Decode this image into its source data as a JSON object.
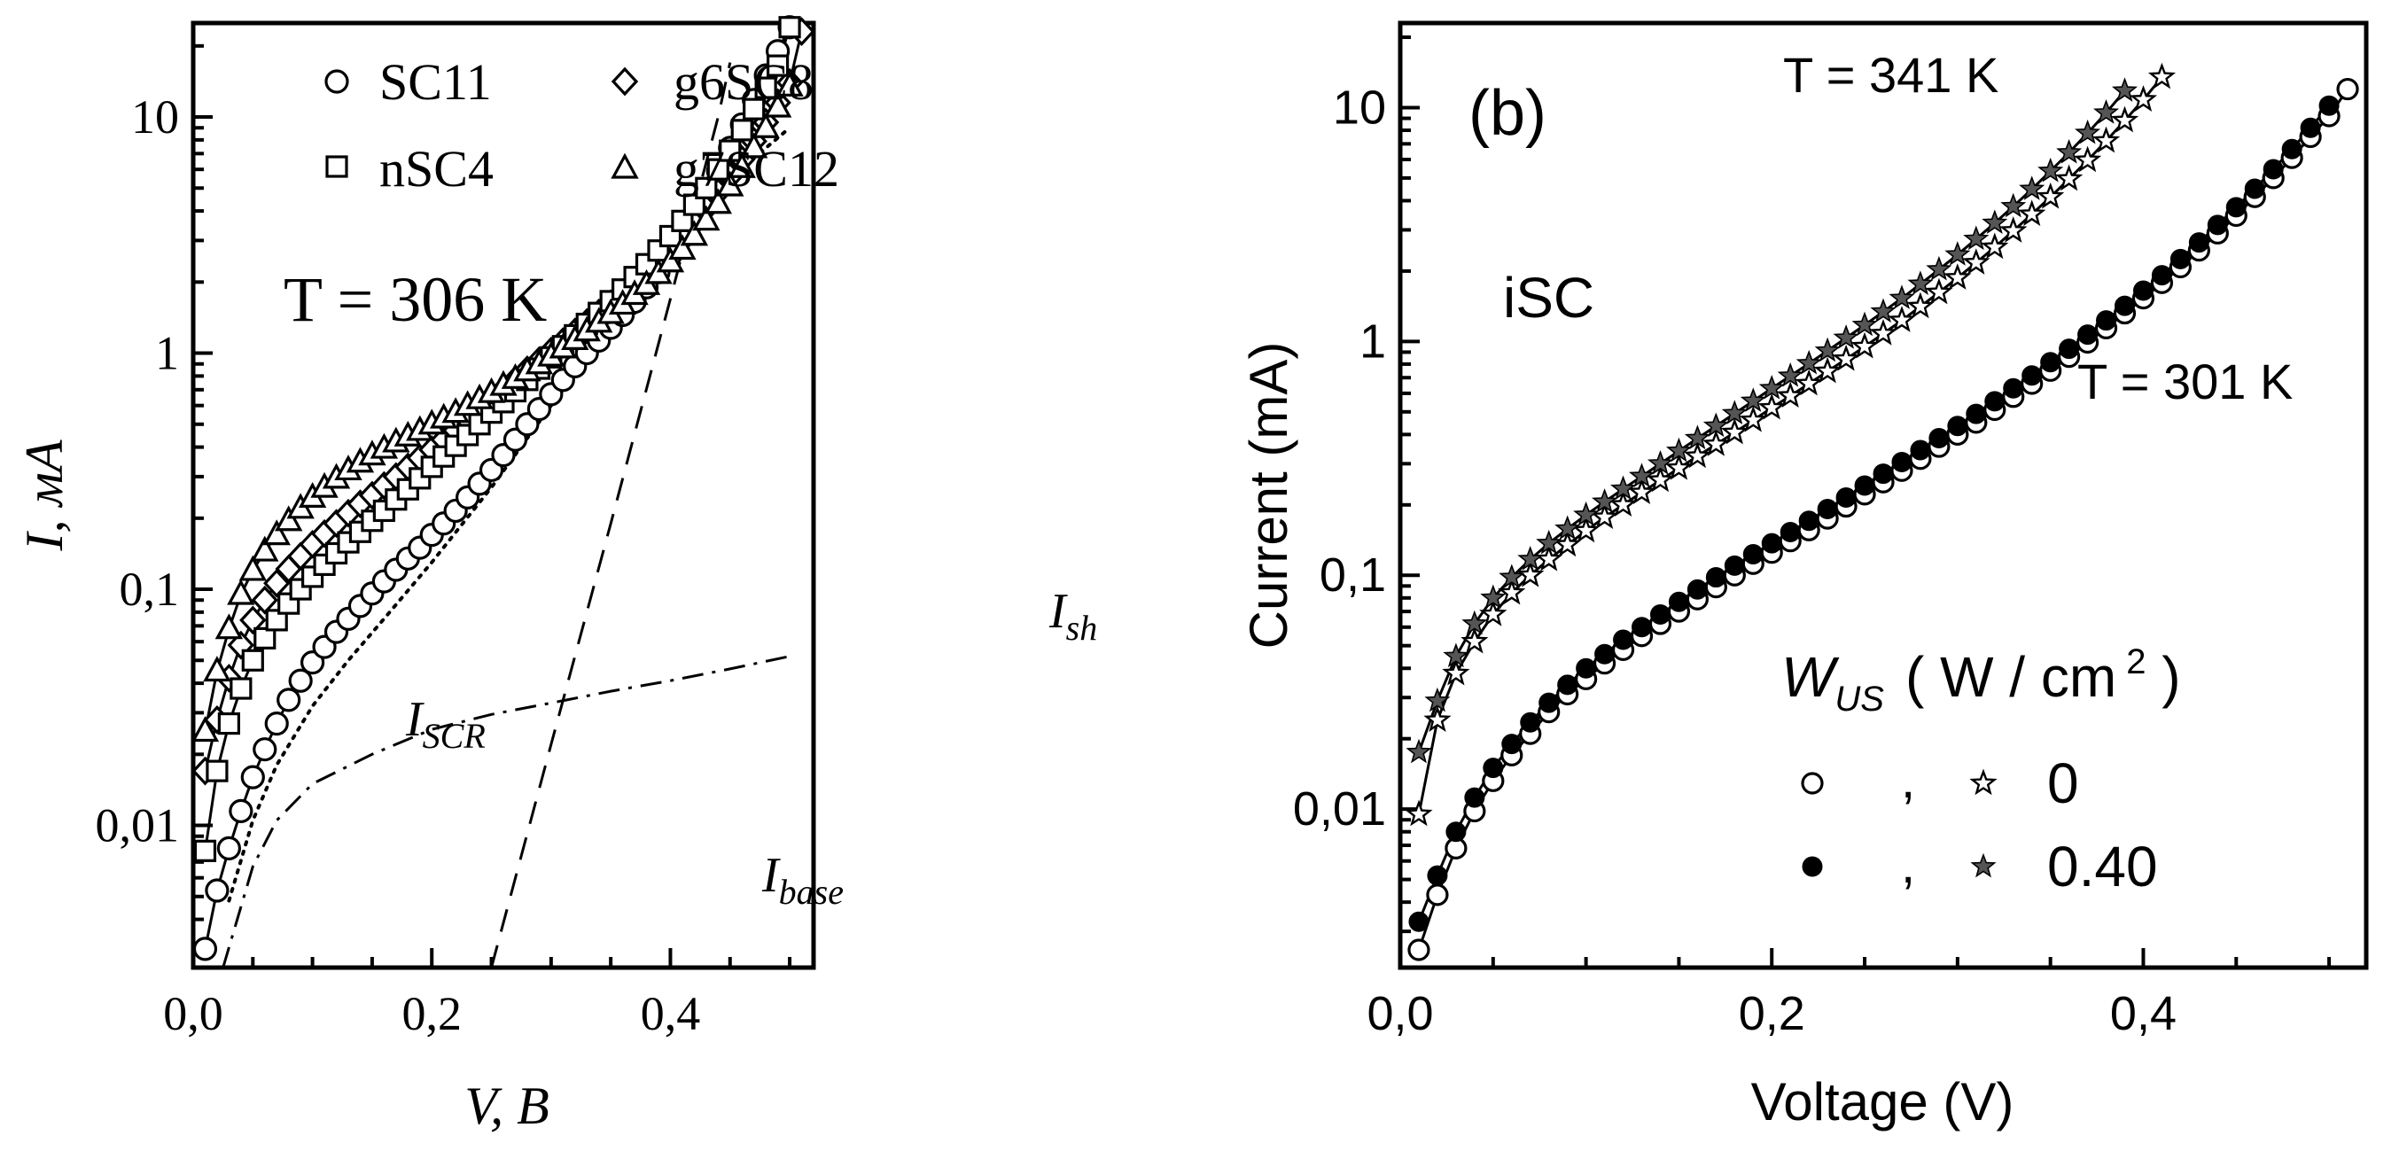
{
  "chart_data": [
    {
      "panel": "a",
      "type": "line",
      "yscale": "log",
      "xlim": [
        0,
        0.52
      ],
      "ylim": [
        0.0025,
        25
      ],
      "xticks": [
        "0,0",
        "0,2",
        "0,4"
      ],
      "yticks": [
        "0,01",
        "0,1",
        "1",
        "10"
      ],
      "xlabel": "V,  В",
      "ylabel": "I, мА",
      "annotation": "T = 306 K",
      "legend": [
        "SC11",
        "g6SC8",
        "nSC4",
        "g7SC12"
      ],
      "legend_position": "top-left",
      "series": [
        {
          "name": "SC11",
          "marker": "circle",
          "x": [
            0.01,
            0.02,
            0.03,
            0.04,
            0.05,
            0.06,
            0.07,
            0.08,
            0.09,
            0.1,
            0.11,
            0.12,
            0.13,
            0.14,
            0.15,
            0.16,
            0.17,
            0.18,
            0.19,
            0.2,
            0.21,
            0.22,
            0.23,
            0.24,
            0.25,
            0.26,
            0.27,
            0.28,
            0.29,
            0.3,
            0.31,
            0.32,
            0.33,
            0.34,
            0.35,
            0.36,
            0.37,
            0.38,
            0.39,
            0.4,
            0.41,
            0.42,
            0.43,
            0.44,
            0.45,
            0.46,
            0.47,
            0.48,
            0.49,
            0.5
          ],
          "y": [
            0.003,
            0.0053,
            0.008,
            0.0115,
            0.016,
            0.021,
            0.027,
            0.034,
            0.041,
            0.049,
            0.057,
            0.066,
            0.075,
            0.085,
            0.096,
            0.108,
            0.121,
            0.135,
            0.15,
            0.17,
            0.19,
            0.215,
            0.245,
            0.28,
            0.32,
            0.37,
            0.43,
            0.5,
            0.58,
            0.67,
            0.77,
            0.88,
            1.0,
            1.13,
            1.28,
            1.45,
            1.65,
            1.9,
            2.2,
            2.6,
            3.1,
            3.8,
            4.7,
            5.9,
            7.4,
            9.3,
            11.8,
            15,
            19,
            24
          ]
        },
        {
          "name": "g6SC8",
          "marker": "diamond",
          "x": [
            0.01,
            0.02,
            0.03,
            0.04,
            0.05,
            0.06,
            0.07,
            0.08,
            0.09,
            0.1,
            0.11,
            0.12,
            0.13,
            0.14,
            0.15,
            0.16,
            0.17,
            0.18,
            0.19,
            0.2,
            0.21,
            0.22,
            0.23,
            0.24,
            0.25,
            0.26,
            0.27,
            0.28,
            0.29,
            0.3,
            0.31,
            0.32,
            0.33,
            0.34,
            0.35,
            0.36,
            0.37,
            0.38,
            0.39,
            0.4,
            0.41,
            0.42,
            0.43,
            0.44,
            0.45,
            0.46,
            0.47,
            0.48,
            0.49,
            0.5,
            0.51
          ],
          "y": [
            0.017,
            0.028,
            0.042,
            0.058,
            0.074,
            0.09,
            0.106,
            0.122,
            0.138,
            0.155,
            0.172,
            0.19,
            0.21,
            0.23,
            0.25,
            0.275,
            0.3,
            0.33,
            0.36,
            0.39,
            0.43,
            0.47,
            0.52,
            0.57,
            0.63,
            0.7,
            0.77,
            0.85,
            0.93,
            1.02,
            1.12,
            1.23,
            1.35,
            1.48,
            1.62,
            1.78,
            1.96,
            2.17,
            2.42,
            2.72,
            3.1,
            3.55,
            4.1,
            4.8,
            5.6,
            6.6,
            7.9,
            9.5,
            11.5,
            14,
            23
          ]
        },
        {
          "name": "nSC4",
          "marker": "square",
          "x": [
            0.01,
            0.02,
            0.03,
            0.04,
            0.05,
            0.06,
            0.07,
            0.08,
            0.09,
            0.1,
            0.11,
            0.12,
            0.13,
            0.14,
            0.15,
            0.16,
            0.17,
            0.18,
            0.19,
            0.2,
            0.21,
            0.22,
            0.23,
            0.24,
            0.25,
            0.26,
            0.27,
            0.28,
            0.29,
            0.3,
            0.31,
            0.32,
            0.33,
            0.34,
            0.35,
            0.36,
            0.37,
            0.38,
            0.39,
            0.4,
            0.41,
            0.42,
            0.43,
            0.44,
            0.45,
            0.46,
            0.47,
            0.48,
            0.49,
            0.5
          ],
          "y": [
            0.0078,
            0.017,
            0.027,
            0.038,
            0.05,
            0.062,
            0.074,
            0.087,
            0.1,
            0.113,
            0.127,
            0.142,
            0.158,
            0.175,
            0.195,
            0.215,
            0.24,
            0.265,
            0.295,
            0.33,
            0.365,
            0.405,
            0.45,
            0.5,
            0.56,
            0.62,
            0.69,
            0.77,
            0.86,
            0.96,
            1.07,
            1.19,
            1.33,
            1.48,
            1.66,
            1.86,
            2.1,
            2.38,
            2.72,
            3.13,
            3.63,
            4.25,
            5.0,
            6.0,
            7.2,
            8.8,
            10.8,
            13.3,
            16.5,
            24
          ]
        },
        {
          "name": "g7SC12",
          "marker": "triangle",
          "x": [
            0.01,
            0.02,
            0.03,
            0.04,
            0.05,
            0.06,
            0.07,
            0.08,
            0.09,
            0.1,
            0.11,
            0.12,
            0.13,
            0.14,
            0.15,
            0.16,
            0.17,
            0.18,
            0.19,
            0.2,
            0.21,
            0.22,
            0.23,
            0.24,
            0.25,
            0.26,
            0.27,
            0.28,
            0.29,
            0.3,
            0.31,
            0.32,
            0.33,
            0.34,
            0.35,
            0.36,
            0.37,
            0.38,
            0.39,
            0.4,
            0.41,
            0.42,
            0.43,
            0.44,
            0.45,
            0.46,
            0.47,
            0.48,
            0.49,
            0.5
          ],
          "y": [
            0.025,
            0.045,
            0.068,
            0.095,
            0.12,
            0.145,
            0.17,
            0.195,
            0.22,
            0.245,
            0.27,
            0.295,
            0.32,
            0.345,
            0.37,
            0.395,
            0.42,
            0.445,
            0.47,
            0.5,
            0.53,
            0.56,
            0.6,
            0.64,
            0.68,
            0.73,
            0.78,
            0.84,
            0.9,
            0.97,
            1.05,
            1.14,
            1.24,
            1.35,
            1.47,
            1.61,
            1.77,
            1.95,
            2.17,
            2.43,
            2.75,
            3.15,
            3.65,
            4.3,
            5.1,
            6.1,
            7.4,
            9.0,
            11.0,
            13.5
          ]
        },
        {
          "name": "I_SCR",
          "style": "dotted",
          "x": [
            0.03,
            0.05,
            0.07,
            0.1,
            0.13,
            0.16,
            0.2,
            0.25,
            0.3,
            0.35,
            0.4,
            0.45,
            0.5
          ],
          "y": [
            0.0048,
            0.0105,
            0.018,
            0.032,
            0.05,
            0.075,
            0.13,
            0.27,
            0.6,
            1.3,
            2.8,
            5.5,
            9.0
          ]
        },
        {
          "name": "I_sh",
          "style": "dash-dot",
          "x": [
            0.025,
            0.05,
            0.07,
            0.1,
            0.15,
            0.2,
            0.25,
            0.3,
            0.35,
            0.4,
            0.45,
            0.5
          ],
          "y": [
            0.0025,
            0.0067,
            0.0105,
            0.015,
            0.02,
            0.0255,
            0.0295,
            0.033,
            0.037,
            0.041,
            0.046,
            0.052
          ]
        },
        {
          "name": "I_base",
          "style": "dashed",
          "x": [
            0.25,
            0.3,
            0.35,
            0.4,
            0.44,
            0.45
          ],
          "y": [
            0.0025,
            0.022,
            0.19,
            1.7,
            10,
            17
          ]
        }
      ],
      "curve_labels": {
        "I_SCR": "I",
        "I_SCR_sub": "SCR",
        "I_base": "I",
        "I_base_sub": "base",
        "I_sh": "I",
        "I_sh_sub": "sh"
      }
    },
    {
      "panel": "b",
      "type": "line",
      "yscale": "log",
      "xlim": [
        0,
        0.52
      ],
      "ylim": [
        0.0021,
        23
      ],
      "xticks": [
        "0,0",
        "0,2",
        "0,4"
      ],
      "yticks": [
        "0,01",
        "0,1",
        "1",
        "10"
      ],
      "xlabel": "Voltage (V)",
      "ylabel": "Current (mA)",
      "panel_label": "(b)",
      "sample_label": "iSC",
      "annotations": [
        "T = 341 K",
        "T = 301 K"
      ],
      "legend_title": "W_US  ( W / cm 2 )",
      "legend_rows": [
        "0",
        "0.40"
      ],
      "legend_sep": ",",
      "series": [
        {
          "name": "301 K, 0",
          "marker": "open-circle",
          "x": [
            0.01,
            0.02,
            0.03,
            0.04,
            0.05,
            0.06,
            0.07,
            0.08,
            0.09,
            0.1,
            0.11,
            0.12,
            0.13,
            0.14,
            0.15,
            0.16,
            0.17,
            0.18,
            0.19,
            0.2,
            0.21,
            0.22,
            0.23,
            0.24,
            0.25,
            0.26,
            0.27,
            0.28,
            0.29,
            0.3,
            0.31,
            0.32,
            0.33,
            0.34,
            0.35,
            0.36,
            0.37,
            0.38,
            0.39,
            0.4,
            0.41,
            0.42,
            0.43,
            0.44,
            0.45,
            0.46,
            0.47,
            0.48,
            0.49,
            0.5,
            0.51
          ],
          "y": [
            0.0025,
            0.0043,
            0.0068,
            0.0098,
            0.0132,
            0.017,
            0.021,
            0.026,
            0.031,
            0.036,
            0.042,
            0.048,
            0.055,
            0.062,
            0.07,
            0.079,
            0.089,
            0.1,
            0.112,
            0.125,
            0.14,
            0.156,
            0.175,
            0.197,
            0.222,
            0.25,
            0.28,
            0.315,
            0.355,
            0.4,
            0.45,
            0.51,
            0.58,
            0.66,
            0.75,
            0.86,
            0.99,
            1.14,
            1.32,
            1.53,
            1.78,
            2.08,
            2.45,
            2.9,
            3.45,
            4.15,
            5.0,
            6.1,
            7.5,
            9.2,
            12.0
          ]
        },
        {
          "name": "301 K, 0.40",
          "marker": "filled-circle",
          "x": [
            0.01,
            0.02,
            0.03,
            0.04,
            0.05,
            0.06,
            0.07,
            0.08,
            0.09,
            0.1,
            0.11,
            0.12,
            0.13,
            0.14,
            0.15,
            0.16,
            0.17,
            0.18,
            0.19,
            0.2,
            0.21,
            0.22,
            0.23,
            0.24,
            0.25,
            0.26,
            0.27,
            0.28,
            0.29,
            0.3,
            0.31,
            0.32,
            0.33,
            0.34,
            0.35,
            0.36,
            0.37,
            0.38,
            0.39,
            0.4,
            0.41,
            0.42,
            0.43,
            0.44,
            0.45,
            0.46,
            0.47,
            0.48,
            0.49,
            0.5
          ],
          "y": [
            0.0033,
            0.0052,
            0.008,
            0.0112,
            0.015,
            0.019,
            0.0235,
            0.0285,
            0.034,
            0.04,
            0.046,
            0.053,
            0.06,
            0.068,
            0.077,
            0.087,
            0.098,
            0.11,
            0.123,
            0.137,
            0.153,
            0.171,
            0.192,
            0.215,
            0.242,
            0.272,
            0.305,
            0.343,
            0.386,
            0.435,
            0.49,
            0.555,
            0.63,
            0.715,
            0.815,
            0.93,
            1.07,
            1.23,
            1.42,
            1.65,
            1.92,
            2.25,
            2.65,
            3.15,
            3.75,
            4.5,
            5.45,
            6.65,
            8.2,
            10.2
          ]
        },
        {
          "name": "341 K, 0",
          "marker": "open-star",
          "x": [
            0.01,
            0.02,
            0.03,
            0.04,
            0.05,
            0.06,
            0.07,
            0.08,
            0.09,
            0.1,
            0.11,
            0.12,
            0.13,
            0.14,
            0.15,
            0.16,
            0.17,
            0.18,
            0.19,
            0.2,
            0.21,
            0.22,
            0.23,
            0.24,
            0.25,
            0.26,
            0.27,
            0.28,
            0.29,
            0.3,
            0.31,
            0.32,
            0.33,
            0.34,
            0.35,
            0.36,
            0.37,
            0.38,
            0.39,
            0.4,
            0.41
          ],
          "y": [
            0.0095,
            0.024,
            0.038,
            0.052,
            0.068,
            0.084,
            0.1,
            0.117,
            0.135,
            0.155,
            0.177,
            0.2,
            0.226,
            0.255,
            0.287,
            0.323,
            0.363,
            0.408,
            0.46,
            0.52,
            0.585,
            0.66,
            0.745,
            0.84,
            0.95,
            1.08,
            1.23,
            1.41,
            1.62,
            1.87,
            2.17,
            2.53,
            2.97,
            3.5,
            4.15,
            4.95,
            5.95,
            7.2,
            8.8,
            10.8,
            13.5
          ]
        },
        {
          "name": "341 K, 0.40",
          "marker": "filled-star",
          "x": [
            0.01,
            0.02,
            0.03,
            0.04,
            0.05,
            0.06,
            0.07,
            0.08,
            0.09,
            0.1,
            0.11,
            0.12,
            0.13,
            0.14,
            0.15,
            0.16,
            0.17,
            0.18,
            0.19,
            0.2,
            0.21,
            0.22,
            0.23,
            0.24,
            0.25,
            0.26,
            0.27,
            0.28,
            0.29,
            0.3,
            0.31,
            0.32,
            0.33,
            0.34,
            0.35,
            0.36,
            0.37,
            0.38,
            0.39
          ],
          "y": [
            0.0175,
            0.029,
            0.045,
            0.062,
            0.08,
            0.098,
            0.117,
            0.137,
            0.158,
            0.181,
            0.206,
            0.234,
            0.265,
            0.3,
            0.34,
            0.385,
            0.435,
            0.492,
            0.556,
            0.63,
            0.712,
            0.805,
            0.912,
            1.035,
            1.175,
            1.34,
            1.53,
            1.76,
            2.03,
            2.35,
            2.74,
            3.21,
            3.78,
            4.48,
            5.35,
            6.42,
            7.78,
            9.5,
            11.8
          ]
        }
      ]
    }
  ]
}
